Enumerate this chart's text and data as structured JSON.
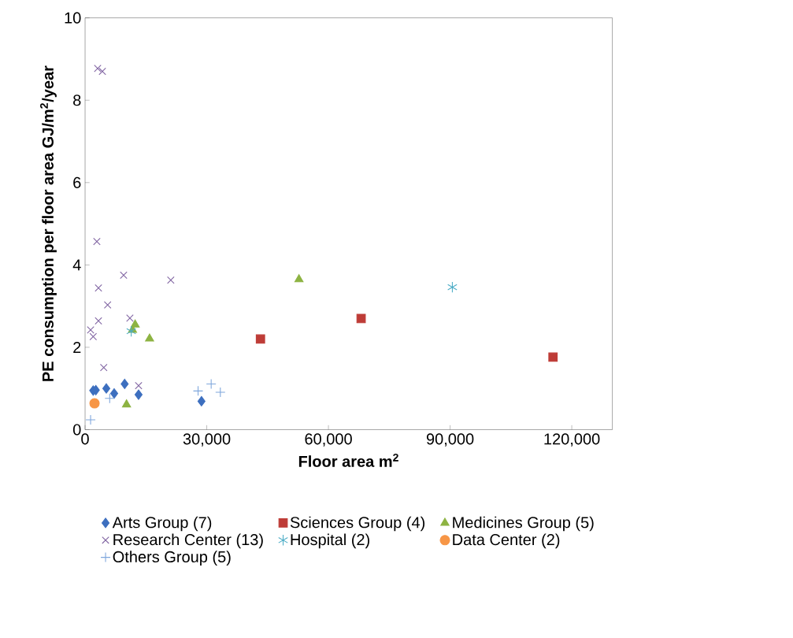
{
  "chart_data": {
    "type": "scatter",
    "xlabel": "Floor area m$^{2}$",
    "ylabel": "PE consumption per floor area GJ/m$^{2}$/year",
    "xlim": [
      0,
      130000
    ],
    "ylim": [
      0,
      10
    ],
    "xticks": [
      0,
      {
        "value": 30000,
        "label": "30,000"
      },
      {
        "value": 60000,
        "label": "60,000"
      },
      {
        "value": 90000,
        "label": "90,000"
      },
      {
        "value": 120000,
        "label": "120,000"
      }
    ],
    "yticks": [
      0,
      2,
      4,
      6,
      8,
      10
    ],
    "grid": false,
    "legend": "bottom",
    "series": [
      {
        "name": "Arts Group (7)",
        "color": "#3d6fbf",
        "marker": "diamond",
        "x": [
          2000,
          2650,
          5240,
          7180,
          9760,
          13190,
          28700
        ],
        "values": [
          0.95,
          0.96,
          1.0,
          0.88,
          1.11,
          0.85,
          0.69
        ]
      },
      {
        "name": "Sciences Group (4)",
        "color": "#be3c37",
        "marker": "square",
        "x": [
          43240,
          68060,
          115370
        ],
        "values": [
          2.2,
          2.7,
          1.76
        ]
      },
      {
        "name": "Medicines Group (5)",
        "color": "#8db342",
        "marker": "triangle",
        "x": [
          52740,
          12350,
          11700,
          15900,
          10220
        ],
        "values": [
          3.65,
          2.55,
          2.42,
          2.21,
          0.61
        ]
      },
      {
        "name": "Research Center (13)",
        "color": "#8064a2",
        "marker": "cross",
        "x": [
          3100,
          4270,
          2900,
          9500,
          21130,
          3300,
          5560,
          3300,
          1360,
          2000,
          11050,
          4600,
          13190
        ],
        "values": [
          8.77,
          8.7,
          4.57,
          3.75,
          3.63,
          3.44,
          3.03,
          2.64,
          2.42,
          2.26,
          2.71,
          1.51,
          1.07
        ]
      },
      {
        "name": "Hospital (2)",
        "color": "#4bacc6",
        "x": [
          90550,
          11380
        ],
        "values": [
          3.46,
          2.39
        ]
      },
      {
        "name": "Data Center (2)",
        "color": "#f79646",
        "marker": "circle",
        "x": [
          2330
        ],
        "values": [
          0.64
        ]
      },
      {
        "name": "Others Group (5)",
        "color": "#7ea6dc",
        "marker": "plus",
        "x": [
          1360,
          6070,
          27860,
          31090,
          33350
        ],
        "values": [
          0.24,
          0.76,
          0.94,
          1.11,
          0.91
        ]
      }
    ]
  }
}
